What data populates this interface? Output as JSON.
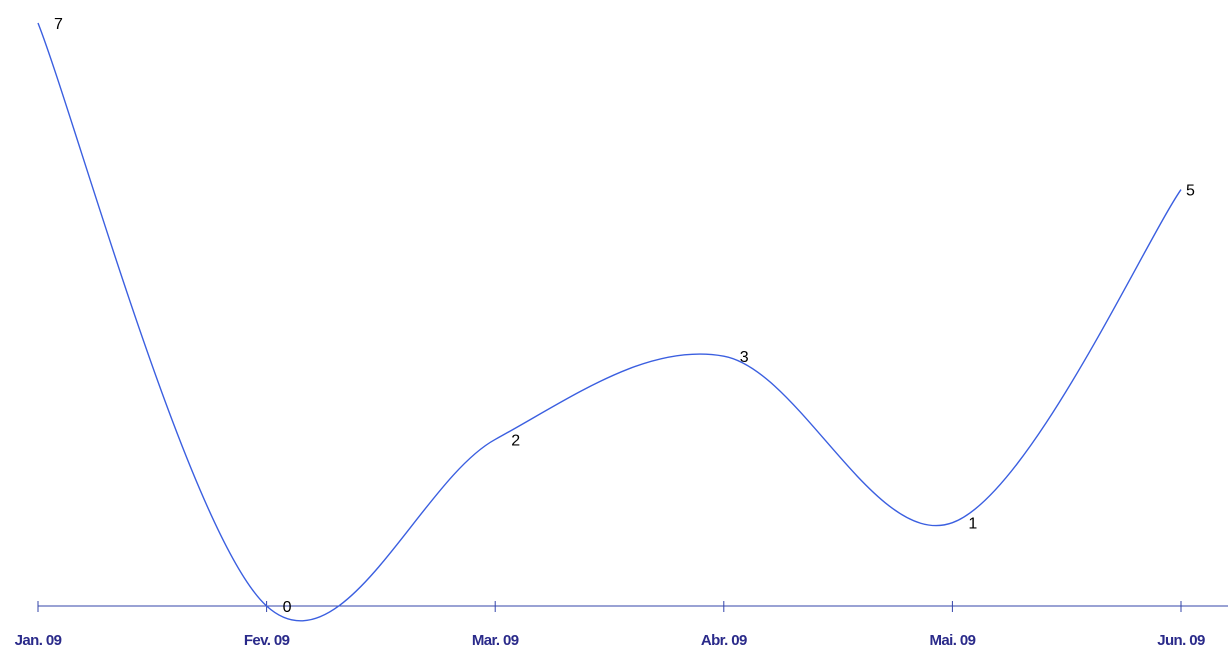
{
  "chart_data": {
    "type": "line",
    "smooth": true,
    "categories": [
      "Jan. 09",
      "Fev. 09",
      "Mar. 09",
      "Abr. 09",
      "Mai. 09",
      "Jun. 09"
    ],
    "series": [
      {
        "values": [
          7,
          0,
          2,
          3,
          1,
          5
        ],
        "data_labels": [
          "7",
          "0",
          "2",
          "3",
          "1",
          "5"
        ]
      }
    ],
    "title": "",
    "xlabel": "",
    "ylabel": "",
    "ylim": [
      0,
      7
    ],
    "grid": false,
    "colors": {
      "line": "#3b5fe0",
      "axis": "#3344aa",
      "tick_label": "#2a2a8a",
      "data_label": "#000000"
    }
  }
}
